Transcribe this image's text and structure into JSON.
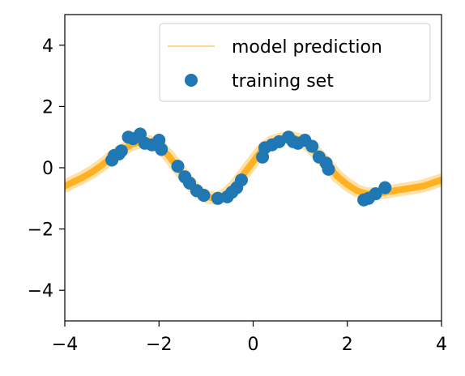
{
  "chart_data": {
    "type": "scatter",
    "title": "",
    "xlabel": "",
    "ylabel": "",
    "xlim": [
      -4,
      4
    ],
    "ylim": [
      -5,
      5
    ],
    "xticks": [
      -4,
      -2,
      0,
      2,
      4
    ],
    "yticks": [
      -4,
      -2,
      0,
      2,
      4
    ],
    "xtick_labels": [
      "−4",
      "−2",
      "0",
      "2",
      "4"
    ],
    "ytick_labels": [
      "−4",
      "−2",
      "0",
      "2",
      "4"
    ],
    "grid": false,
    "legend": {
      "placement": "top-right",
      "entries": [
        {
          "label": "model prediction",
          "kind": "line",
          "color": "#ffa500"
        },
        {
          "label": "training set",
          "kind": "marker",
          "color": "#1f77b4"
        }
      ]
    },
    "series": [
      {
        "name": "model prediction",
        "kind": "line",
        "color": "#ffa500",
        "x": [
          -4.0,
          -3.8,
          -3.6,
          -3.4,
          -3.2,
          -3.0,
          -2.8,
          -2.6,
          -2.4,
          -2.2,
          -2.0,
          -1.8,
          -1.6,
          -1.4,
          -1.2,
          -1.0,
          -0.8,
          -0.6,
          -0.4,
          -0.2,
          0.0,
          0.2,
          0.4,
          0.6,
          0.8,
          1.0,
          1.2,
          1.4,
          1.6,
          1.8,
          2.0,
          2.2,
          2.4,
          2.6,
          2.8,
          3.0,
          3.2,
          3.4,
          3.6,
          3.8,
          4.0
        ],
        "y": [
          -0.6,
          -0.45,
          -0.3,
          -0.12,
          0.1,
          0.35,
          0.55,
          0.75,
          0.85,
          0.85,
          0.7,
          0.4,
          0.0,
          -0.4,
          -0.75,
          -0.95,
          -1.0,
          -0.9,
          -0.6,
          -0.2,
          0.2,
          0.6,
          0.85,
          0.95,
          1.0,
          0.9,
          0.7,
          0.4,
          0.05,
          -0.3,
          -0.55,
          -0.75,
          -0.85,
          -0.85,
          -0.8,
          -0.75,
          -0.7,
          -0.65,
          -0.6,
          -0.5,
          -0.4
        ]
      },
      {
        "name": "training set",
        "kind": "scatter",
        "color": "#1f77b4",
        "points": [
          [
            -3.0,
            0.25
          ],
          [
            -2.95,
            0.4
          ],
          [
            -2.85,
            0.45
          ],
          [
            -2.8,
            0.55
          ],
          [
            -2.65,
            1.0
          ],
          [
            -2.55,
            0.95
          ],
          [
            -2.4,
            1.1
          ],
          [
            -2.3,
            0.8
          ],
          [
            -2.15,
            0.75
          ],
          [
            -2.0,
            0.9
          ],
          [
            -1.95,
            0.6
          ],
          [
            -1.6,
            0.05
          ],
          [
            -1.45,
            -0.3
          ],
          [
            -1.35,
            -0.5
          ],
          [
            -1.2,
            -0.75
          ],
          [
            -1.05,
            -0.9
          ],
          [
            -0.75,
            -1.0
          ],
          [
            -0.55,
            -0.95
          ],
          [
            -0.45,
            -0.8
          ],
          [
            -0.35,
            -0.65
          ],
          [
            -0.25,
            -0.4
          ],
          [
            0.2,
            0.35
          ],
          [
            0.25,
            0.65
          ],
          [
            0.4,
            0.75
          ],
          [
            0.55,
            0.85
          ],
          [
            0.75,
            1.0
          ],
          [
            0.85,
            0.85
          ],
          [
            0.95,
            0.8
          ],
          [
            1.1,
            0.9
          ],
          [
            1.25,
            0.7
          ],
          [
            1.4,
            0.35
          ],
          [
            1.55,
            0.15
          ],
          [
            1.6,
            -0.05
          ],
          [
            2.35,
            -1.05
          ],
          [
            2.45,
            -1.0
          ],
          [
            2.6,
            -0.85
          ],
          [
            2.8,
            -0.65
          ]
        ]
      }
    ]
  }
}
